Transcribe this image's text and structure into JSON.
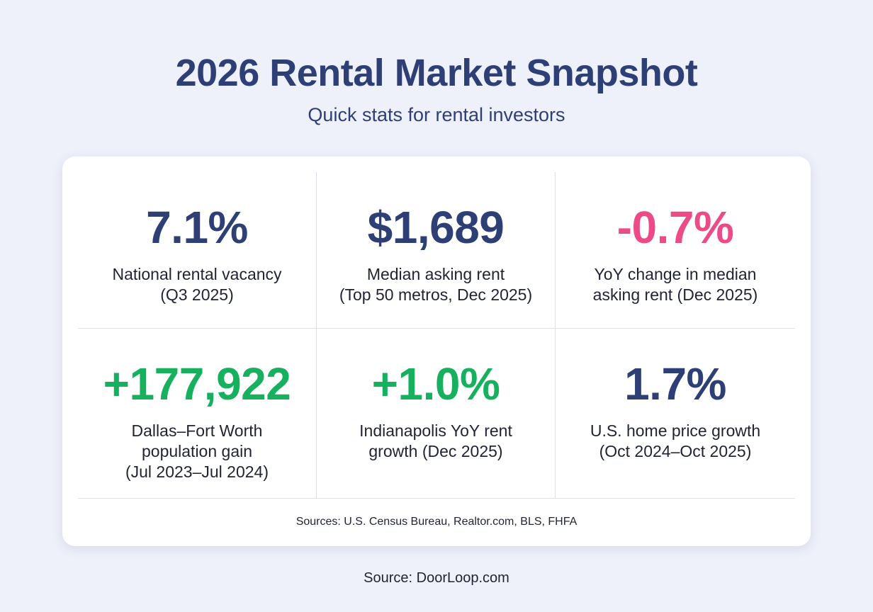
{
  "title": "2026 Rental Market Snapshot",
  "subtitle": "Quick stats for rental investors",
  "stats": [
    {
      "value": "7.1%",
      "label": "National rental vacancy\n(Q3 2025)",
      "color": "#2e3f75"
    },
    {
      "value": "$1,689",
      "label": "Median asking rent\n(Top 50 metros, Dec 2025)",
      "color": "#2e3f75"
    },
    {
      "value": "-0.7%",
      "label": "YoY change in median\nasking rent (Dec 2025)",
      "color": "#ec4b88"
    },
    {
      "value": "+177,922",
      "label": "Dallas–Fort Worth\npopulation gain\n(Jul 2023–Jul 2024)",
      "color": "#16b05f"
    },
    {
      "value": "+1.0%",
      "label": "Indianapolis YoY rent\ngrowth (Dec 2025)",
      "color": "#16b05f"
    },
    {
      "value": "1.7%",
      "label": "U.S. home price growth\n(Oct 2024–Oct 2025)",
      "color": "#2e3f75"
    }
  ],
  "card_sources": "Sources: U.S. Census Bureau, Realtor.com, BLS, FHFA",
  "footer_source": "Source: DoorLoop.com"
}
